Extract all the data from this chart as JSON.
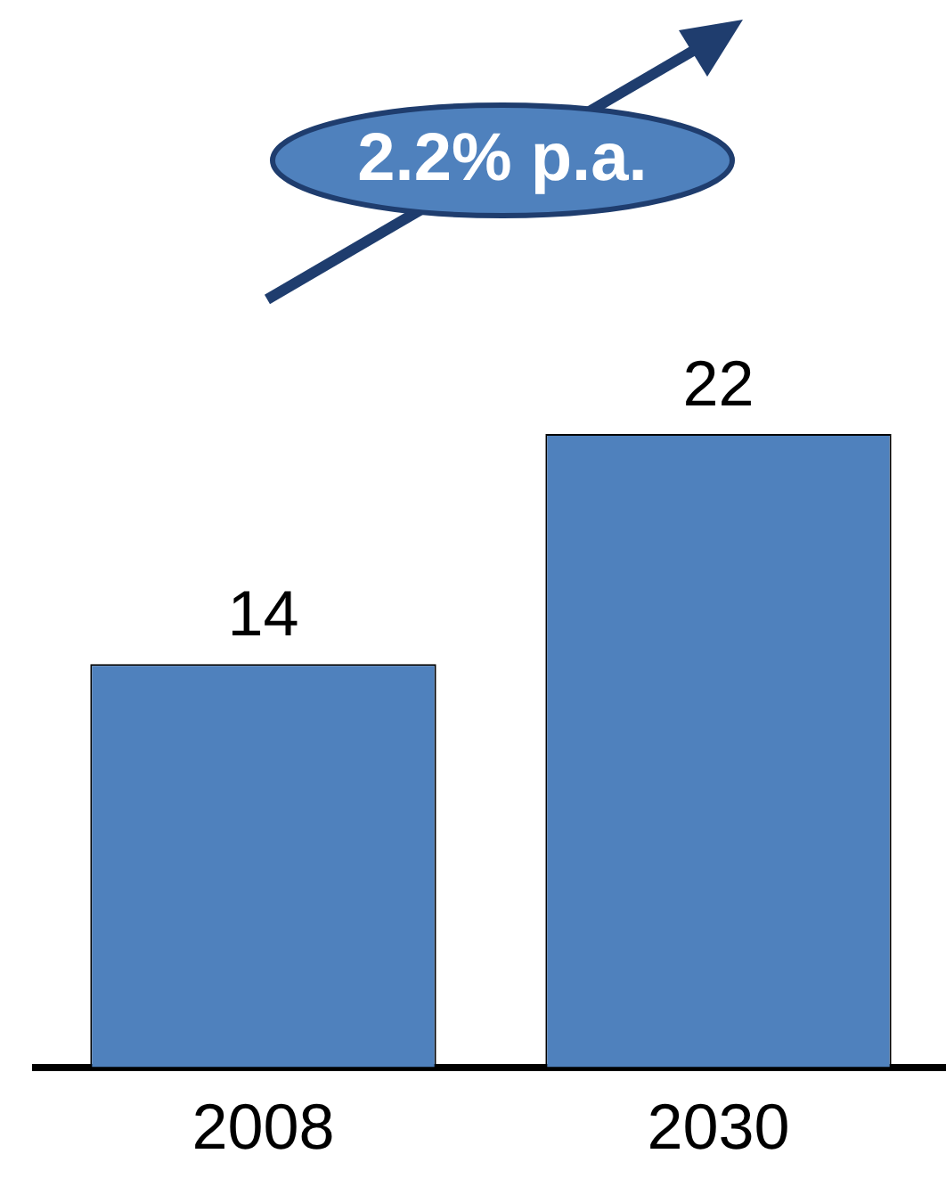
{
  "chart_data": {
    "type": "bar",
    "categories": [
      "2008",
      "2030"
    ],
    "values": [
      14,
      22
    ],
    "color": "#4f81bd",
    "data_labels": true,
    "tick_labels": "x",
    "grid": false,
    "legend": false,
    "annotations": [
      "2.2% p.a."
    ]
  }
}
